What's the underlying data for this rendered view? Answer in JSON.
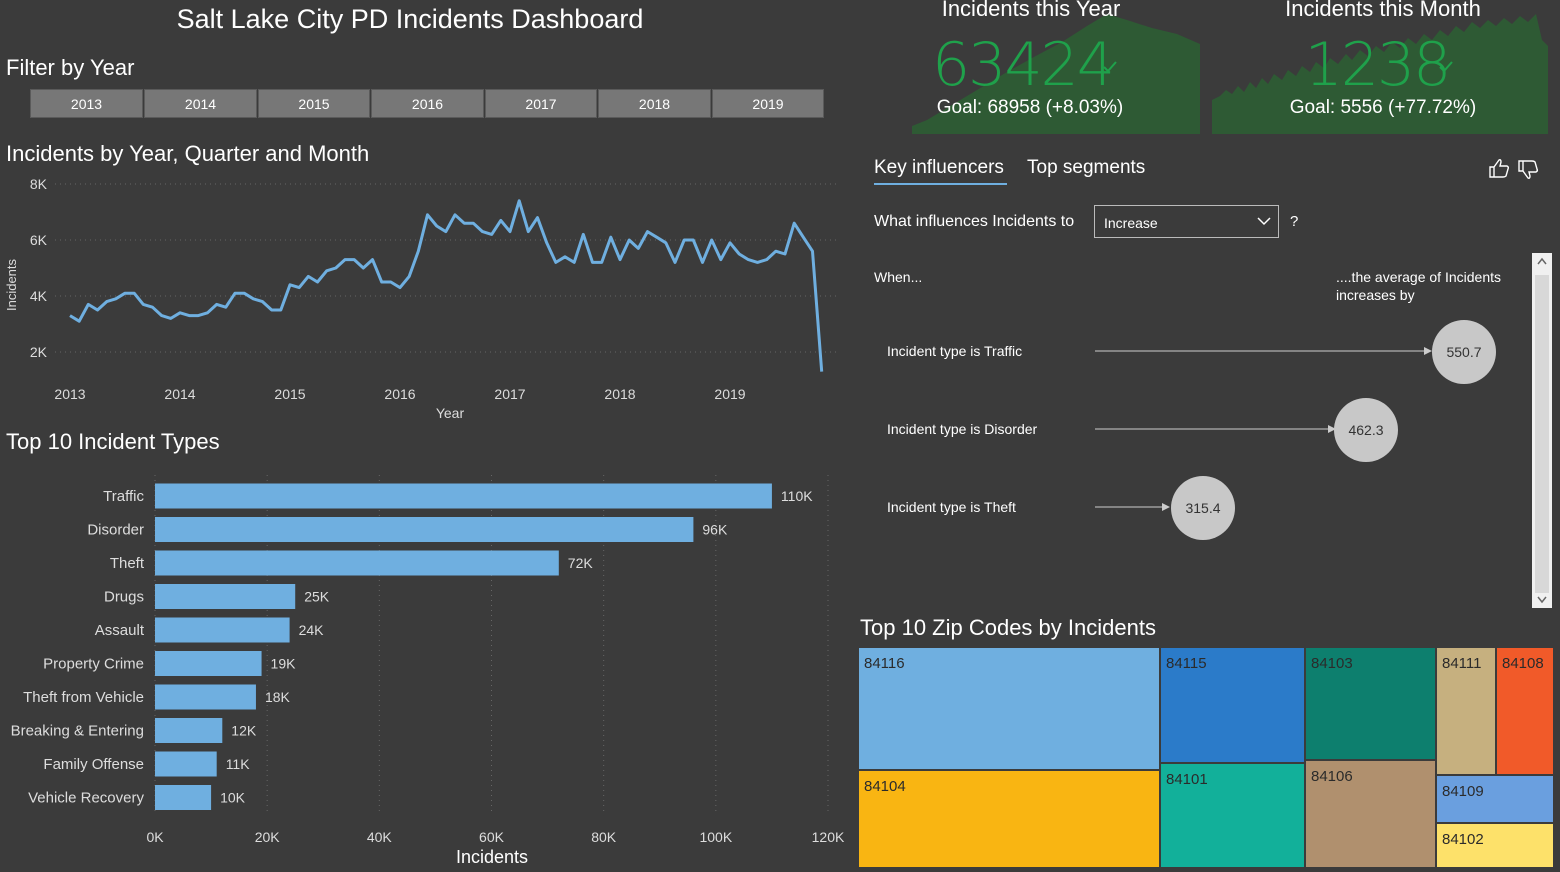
{
  "dashboard": {
    "title": "Salt Lake City PD Incidents Dashboard"
  },
  "filter": {
    "title": "Filter by Year",
    "years": [
      "2013",
      "2014",
      "2015",
      "2016",
      "2017",
      "2018",
      "2019"
    ]
  },
  "kpis": [
    {
      "title": "Incidents this Year",
      "value": "63424",
      "goal": "Goal: 68958 (+8.03%)",
      "check_icon": "check-icon"
    },
    {
      "title": "Incidents this Month",
      "value": "1238",
      "goal": "Goal: 5556 (+77.72%)",
      "check_icon": "check-icon"
    }
  ],
  "colors": {
    "line": "#6fafe0",
    "bar": "#6fafe0",
    "kpi_green": "#1fa14b",
    "kpi_area": "#2e5a34",
    "background": "#3b3b3b"
  },
  "line_chart": {
    "title": "Incidents by Year, Quarter and Month",
    "chart_data": {
      "type": "line",
      "xlabel": "Year",
      "ylabel": "Incidents",
      "x_ticks": [
        "2013",
        "2014",
        "2015",
        "2016",
        "2017",
        "2018",
        "2019"
      ],
      "y_ticks": [
        "2K",
        "4K",
        "6K",
        "8K"
      ],
      "ylim": [
        1000,
        8000
      ],
      "grid": true,
      "values": [
        3300,
        3100,
        3700,
        3500,
        3800,
        3900,
        4100,
        4100,
        3700,
        3600,
        3300,
        3200,
        3400,
        3300,
        3300,
        3400,
        3700,
        3600,
        4100,
        4100,
        3900,
        3800,
        3500,
        3500,
        4400,
        4300,
        4700,
        4500,
        4900,
        5000,
        5300,
        5300,
        5000,
        5300,
        4500,
        4500,
        4300,
        4700,
        5600,
        6900,
        6500,
        6300,
        6900,
        6600,
        6600,
        6300,
        6200,
        6700,
        6300,
        7400,
        6300,
        6800,
        5900,
        5200,
        5400,
        5200,
        6200,
        5200,
        5200,
        6100,
        5300,
        6000,
        5700,
        6300,
        6100,
        5900,
        5200,
        6000,
        6000,
        5200,
        6000,
        5300,
        5900,
        5500,
        5300,
        5200,
        5300,
        5600,
        5500,
        6600,
        6100,
        5600,
        1300
      ]
    }
  },
  "bar_chart": {
    "title": "Top 10 Incident Types",
    "chart_data": {
      "type": "bar",
      "orientation": "horizontal",
      "categories": [
        "Traffic",
        "Disorder",
        "Theft",
        "Drugs",
        "Assault",
        "Property Crime",
        "Theft from Vehicle",
        "Breaking & Entering",
        "Family Offense",
        "Vehicle Recovery"
      ],
      "values": [
        110000,
        96000,
        72000,
        25000,
        24000,
        19000,
        18000,
        12000,
        11000,
        10000
      ],
      "data_labels": [
        "110K",
        "96K",
        "72K",
        "25K",
        "24K",
        "19K",
        "18K",
        "12K",
        "11K",
        "10K"
      ],
      "xlabel": "Incidents",
      "x_ticks": [
        "0K",
        "20K",
        "40K",
        "60K",
        "80K",
        "100K",
        "120K"
      ],
      "xlim": [
        0,
        120000
      ],
      "grid": true
    }
  },
  "key_influencers": {
    "tabs": [
      "Key influencers",
      "Top segments"
    ],
    "question": "What influences Incidents to",
    "dropdown_value": "Increase",
    "question_mark": "?",
    "when_label": "When...",
    "avg_label_line1": "....the average of Incidents",
    "avg_label_line2": "increases by",
    "influencers": [
      {
        "label": "Incident type is Traffic",
        "value": "550.7",
        "amount": 550.7
      },
      {
        "label": "Incident type is Disorder",
        "value": "462.3",
        "amount": 462.3
      },
      {
        "label": "Incident type is Theft",
        "value": "315.4",
        "amount": 315.4
      }
    ],
    "icons": [
      "thumbs-up-icon",
      "thumbs-down-icon"
    ]
  },
  "treemap": {
    "title": "Top 10 Zip Codes by Incidents",
    "cells": [
      {
        "zip": "84116",
        "color": "#6fafe0"
      },
      {
        "zip": "84104",
        "color": "#f9b512"
      },
      {
        "zip": "84115",
        "color": "#2b7bc9"
      },
      {
        "zip": "84101",
        "color": "#12b09a"
      },
      {
        "zip": "84103",
        "color": "#0d7f6e"
      },
      {
        "zip": "84106",
        "color": "#b0906e"
      },
      {
        "zip": "84111",
        "color": "#c6b07f"
      },
      {
        "zip": "84108",
        "color": "#f15a29"
      },
      {
        "zip": "84109",
        "color": "#6a9fdf"
      },
      {
        "zip": "84102",
        "color": "#fde16a"
      }
    ]
  }
}
